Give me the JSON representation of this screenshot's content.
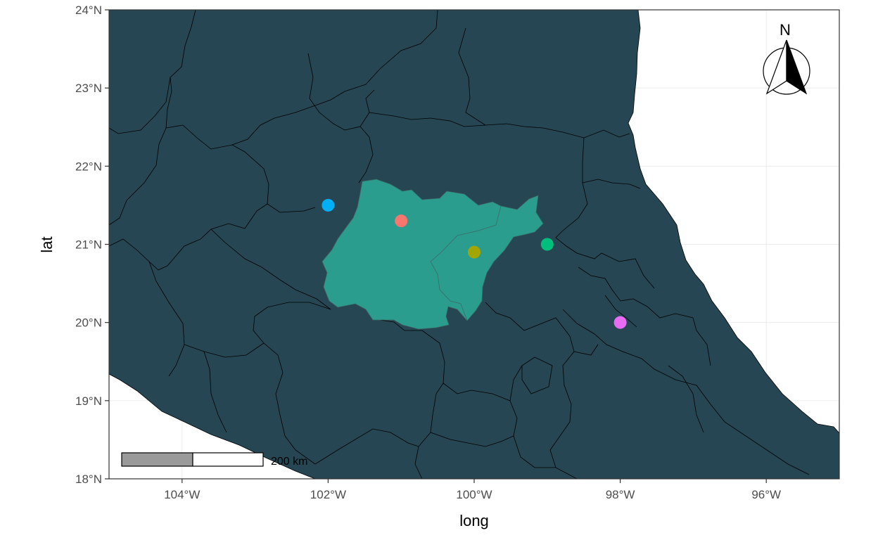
{
  "map": {
    "xlabel": "long",
    "ylabel": "lat",
    "x_ticks": [
      "104°W",
      "102°W",
      "100°W",
      "98°W",
      "96°W"
    ],
    "y_ticks": [
      "18°N",
      "19°N",
      "20°N",
      "21°N",
      "22°N",
      "23°N",
      "24°N"
    ],
    "scale_bar": {
      "label": "200 km"
    },
    "north_arrow": {
      "label": "N"
    },
    "colors": {
      "land": "#264653",
      "highlight_region": "#2A9D8F",
      "water": "#ffffff",
      "grid": "#ebebeb",
      "border": "#000000"
    }
  },
  "chart_data": {
    "type": "scatter",
    "title": "",
    "xlabel": "long",
    "ylabel": "lat",
    "xlim": [
      -105,
      -95
    ],
    "ylim": [
      18,
      24
    ],
    "grid": true,
    "points": [
      {
        "x": -102.0,
        "y": 21.5,
        "color": "#00B0F6"
      },
      {
        "x": -101.0,
        "y": 21.3,
        "color": "#F8766D"
      },
      {
        "x": -100.0,
        "y": 20.9,
        "color": "#A3A500"
      },
      {
        "x": -99.0,
        "y": 21.0,
        "color": "#00BF7D"
      },
      {
        "x": -98.0,
        "y": 20.0,
        "color": "#E76BF3"
      }
    ]
  }
}
